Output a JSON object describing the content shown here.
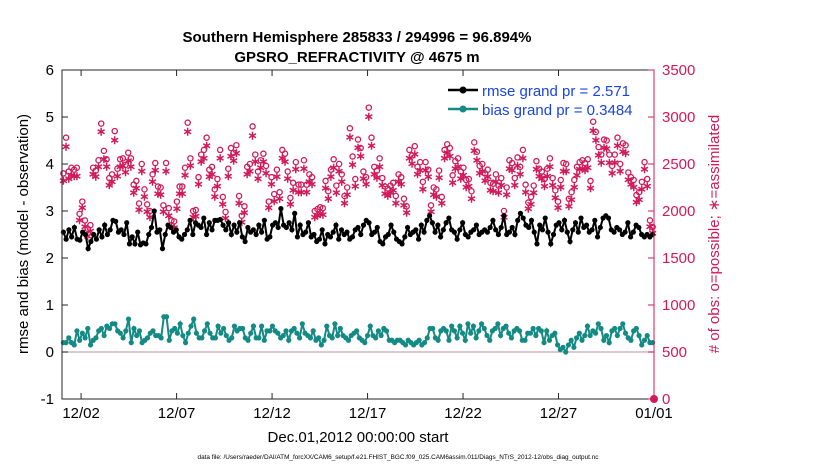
{
  "chart_data": {
    "type": "line",
    "title": "Southern Hemisphere 285833 / 294996 = 96.894%",
    "subtitle": "GPSRO_REFRACTIVITY @ 4675 m",
    "xlabel": "Dec.01,2012 00:00:00 start",
    "ylabel_left": "rmse and bias (model - observation)",
    "ylabel_right": "# of obs: o=possible; ∗=assimilated",
    "footnote": "data file: /Users/raeder/DAI/ATM_forcXX/CAM6_setup/f.e21.FHIST_BGC.f09_025.CAM6assim.011/Diags_NTrS_2012-12/obs_diag_output.nc",
    "xlim": [
      0,
      31
    ],
    "ylim_left": [
      -1,
      6
    ],
    "ylim_right": [
      0,
      3500
    ],
    "x_ticks": [
      1,
      6,
      11,
      16,
      21,
      26,
      31
    ],
    "x_tick_labels": [
      "12/02",
      "12/07",
      "12/12",
      "12/17",
      "12/22",
      "12/27",
      "01/01"
    ],
    "y_left_ticks": [
      -1,
      0,
      1,
      2,
      3,
      4,
      5,
      6
    ],
    "y_right_ticks": [
      0,
      500,
      1000,
      1500,
      2000,
      2500,
      3000,
      3500
    ],
    "grid": false,
    "legend_position": "top-right",
    "zero_line": 0,
    "colors": {
      "rmse": "#000000",
      "bias": "#138a84",
      "obs": "#d11a5a",
      "right_axis": "#d11a5a",
      "zero_line": "#c8a8b8"
    },
    "series": [
      {
        "name": "rmse grand pr = 2.571",
        "key": "rmse",
        "axis": "left",
        "values": [
          2.55,
          2.4,
          2.6,
          2.45,
          2.65,
          2.4,
          2.38,
          2.55,
          2.5,
          2.2,
          2.35,
          2.5,
          2.4,
          2.6,
          2.45,
          2.7,
          2.5,
          2.6,
          2.8,
          2.78,
          2.55,
          2.6,
          2.5,
          2.75,
          2.3,
          2.45,
          2.3,
          2.55,
          2.28,
          2.32,
          2.3,
          2.5,
          2.65,
          3.0,
          2.55,
          2.6,
          2.2,
          2.5,
          2.7,
          2.65,
          2.55,
          2.6,
          2.45,
          2.4,
          2.5,
          2.6,
          2.8,
          2.5,
          2.75,
          2.7,
          2.65,
          2.85,
          2.5,
          2.75,
          2.6,
          2.8,
          2.8,
          2.82,
          2.7,
          2.6,
          2.75,
          2.5,
          2.7,
          2.55,
          2.75,
          2.45,
          2.35,
          2.65,
          2.55,
          2.6,
          2.5,
          2.7,
          2.55,
          2.8,
          2.4,
          2.45,
          2.7,
          2.75,
          2.65,
          3.05,
          2.7,
          2.65,
          2.75,
          2.6,
          2.95,
          2.45,
          2.7,
          2.5,
          2.55,
          2.75,
          2.45,
          2.5,
          2.35,
          2.4,
          2.6,
          2.3,
          2.5,
          2.45,
          2.55,
          2.7,
          2.4,
          2.6,
          2.5,
          2.55,
          2.4,
          2.45,
          2.6,
          2.65,
          2.5,
          2.7,
          2.8,
          2.75,
          2.5,
          2.55,
          2.65,
          2.35,
          2.3,
          2.45,
          2.5,
          2.7,
          2.55,
          2.4,
          2.35,
          2.3,
          2.45,
          2.65,
          2.5,
          2.55,
          2.6,
          2.4,
          2.7,
          2.55,
          2.8,
          2.9,
          2.75,
          2.55,
          2.7,
          2.45,
          2.6,
          2.75,
          2.85,
          2.6,
          2.55,
          2.4,
          2.6,
          2.75,
          2.5,
          2.45,
          2.55,
          2.6,
          2.7,
          2.5,
          2.55,
          2.6,
          2.55,
          2.65,
          2.8,
          2.6,
          2.5,
          2.65,
          2.9,
          2.5,
          2.55,
          2.65,
          2.5,
          2.8,
          2.95,
          2.85,
          2.7,
          2.65,
          2.8,
          2.55,
          2.3,
          2.7,
          2.6,
          2.85,
          2.55,
          2.3,
          2.5,
          2.7,
          2.75,
          2.6,
          2.8,
          2.55,
          2.35,
          2.6,
          2.75,
          2.55,
          2.85,
          2.65,
          2.7,
          2.55,
          2.6,
          2.8,
          2.45,
          2.65,
          2.85,
          2.9,
          2.85,
          2.6,
          2.55,
          2.65,
          2.6,
          2.5,
          2.55,
          2.75,
          2.45,
          2.55,
          2.7,
          2.65,
          2.5,
          2.45,
          2.5,
          2.45,
          2.5
        ]
      },
      {
        "name": "bias grand pr = 0.3484",
        "key": "bias",
        "axis": "left",
        "values": [
          0.2,
          0.2,
          0.3,
          0.2,
          0.15,
          0.45,
          0.25,
          0.4,
          0.3,
          0.5,
          0.15,
          0.25,
          0.3,
          0.45,
          0.5,
          0.35,
          0.55,
          0.5,
          0.6,
          0.6,
          0.45,
          0.4,
          0.3,
          0.45,
          0.7,
          0.2,
          0.5,
          0.35,
          0.45,
          0.2,
          0.25,
          0.3,
          0.4,
          0.45,
          0.35,
          0.35,
          0.3,
          0.75,
          0.75,
          0.25,
          0.45,
          0.5,
          0.4,
          0.6,
          0.35,
          0.2,
          0.4,
          0.55,
          0.7,
          0.4,
          0.3,
          0.3,
          0.45,
          0.6,
          0.4,
          0.3,
          0.3,
          0.55,
          0.4,
          0.5,
          0.35,
          0.25,
          0.3,
          0.55,
          0.45,
          0.5,
          0.5,
          0.3,
          0.25,
          0.4,
          0.55,
          0.3,
          0.3,
          0.55,
          0.25,
          0.45,
          0.45,
          0.55,
          0.45,
          0.4,
          0.3,
          0.35,
          0.45,
          0.25,
          0.45,
          0.5,
          0.4,
          0.3,
          0.6,
          0.4,
          0.35,
          0.3,
          0.45,
          0.25,
          0.3,
          0.15,
          0.25,
          0.55,
          0.35,
          0.3,
          0.6,
          0.35,
          0.5,
          0.35,
          0.3,
          0.25,
          0.35,
          0.4,
          0.45,
          0.3,
          0.25,
          0.2,
          0.35,
          0.55,
          0.35,
          0.3,
          0.45,
          0.35,
          0.5,
          0.45,
          0.25,
          0.25,
          0.2,
          0.25,
          0.25,
          0.2,
          0.15,
          0.25,
          0.2,
          0.15,
          0.2,
          0.25,
          0.15,
          0.2,
          0.3,
          0.5,
          0.5,
          0.3,
          0.25,
          0.45,
          0.5,
          0.45,
          0.25,
          0.55,
          0.45,
          0.3,
          0.55,
          0.4,
          0.25,
          0.6,
          0.4,
          0.55,
          0.3,
          0.45,
          0.6,
          0.5,
          0.35,
          0.25,
          0.45,
          0.5,
          0.6,
          0.35,
          0.5,
          0.55,
          0.4,
          0.3,
          0.45,
          0.5,
          0.45,
          0.25,
          0.25,
          0.4,
          0.4,
          0.5,
          0.35,
          0.5,
          0.45,
          0.2,
          0.45,
          0.25,
          0.35,
          0.4,
          0.15,
          0.05,
          0.1,
          0.0,
          0.15,
          0.25,
          0.1,
          0.3,
          0.4,
          0.25,
          0.35,
          0.55,
          0.35,
          0.45,
          0.4,
          0.6,
          0.5,
          0.25,
          0.35,
          0.2,
          0.45,
          0.5,
          0.35,
          0.5,
          0.6,
          0.4,
          0.3,
          0.25,
          0.45,
          0.5,
          0.35,
          0.15,
          0.25,
          0.35,
          0.2,
          0.2
        ]
      },
      {
        "name": "possible",
        "key": "possible",
        "axis": "right",
        "marker": "o",
        "values": [
          2400,
          2780,
          2420,
          2460,
          2440,
          2460,
          1970,
          2100,
          1900,
          1810,
          1850,
          2460,
          2430,
          2540,
          2930,
          2640,
          2550,
          2350,
          2390,
          2850,
          2450,
          2550,
          2560,
          2490,
          2620,
          2560,
          2280,
          2320,
          2080,
          2500,
          2230,
          2070,
          2000,
          2390,
          2510,
          2260,
          2250,
          2060,
          2510,
          2030,
          1900,
          1890,
          2100,
          2260,
          2260,
          2460,
          2940,
          2560,
          2000,
          2010,
          2360,
          2600,
          2650,
          2780,
          2440,
          2470,
          2230,
          2340,
          2650,
          2150,
          1990,
          2450,
          2670,
          2620,
          2700,
          2160,
          1950,
          2050,
          2470,
          2500,
          2900,
          2600,
          2420,
          2540,
          2610,
          2480,
          2100,
          2360,
          2180,
          2440,
          2200,
          2650,
          2610,
          2420,
          2140,
          2300,
          2520,
          2280,
          2280,
          2540,
          2280,
          2390,
          2360,
          2000,
          2020,
          2040,
          2030,
          2320,
          2210,
          2440,
          2550,
          2270,
          2500,
          2390,
          2160,
          2250,
          2880,
          2580,
          2340,
          2760,
          2670,
          2420,
          2360,
          3100,
          2780,
          2470,
          2430,
          2560,
          2350,
          2260,
          2240,
          2270,
          2300,
          2160,
          2390,
          2360,
          2130,
          2050,
          2650,
          2590,
          2690,
          2470,
          2520,
          2310,
          2520,
          2440,
          2060,
          2250,
          2230,
          2430,
          2150,
          2650,
          2710,
          2670,
          2380,
          2530,
          2560,
          2420,
          2460,
          2330,
          2340,
          2210,
          2730,
          2630,
          2480,
          2500,
          2400,
          2440,
          2300,
          2290,
          2390,
          2270,
          2350,
          2000,
          2250,
          2540,
          2510,
          2350,
          2570,
          2470,
          2650,
          2280,
          2090,
          2150,
          2270,
          2530,
          2450,
          2420,
          2340,
          2450,
          2560,
          2350,
          2220,
          2100,
          2330,
          2510,
          2500,
          2130,
          2200,
          2330,
          2470,
          2520,
          2540,
          2510,
          2550,
          2320,
          2950,
          2840,
          2680,
          2600,
          2760,
          2750,
          2600,
          2480,
          2600,
          2780,
          2500,
          2720,
          2700,
          2410,
          2360,
          2330,
          2170,
          2200,
          2310,
          2520,
          2340,
          1900,
          1830
        ]
      },
      {
        "name": "assimilated",
        "key": "assimilated",
        "axis": "right",
        "marker": "*",
        "values": [
          2330,
          2690,
          2350,
          2390,
          2380,
          2380,
          1910,
          2040,
          1840,
          1740,
          1790,
          2400,
          2370,
          2480,
          2850,
          2560,
          2480,
          2280,
          2320,
          2760,
          2380,
          2480,
          2490,
          2420,
          2540,
          2480,
          2200,
          2250,
          2020,
          2430,
          2160,
          2000,
          1940,
          2320,
          2440,
          2190,
          2180,
          2000,
          2430,
          1960,
          1840,
          1830,
          2030,
          2190,
          2190,
          2390,
          2850,
          2490,
          1940,
          1950,
          2290,
          2530,
          2570,
          2700,
          2370,
          2400,
          2160,
          2270,
          2570,
          2080,
          1930,
          2380,
          2590,
          2540,
          2620,
          2090,
          1890,
          1990,
          2400,
          2430,
          2810,
          2530,
          2350,
          2470,
          2530,
          2410,
          2040,
          2290,
          2110,
          2370,
          2140,
          2570,
          2530,
          2350,
          2080,
          2230,
          2450,
          2210,
          2210,
          2460,
          2210,
          2320,
          2290,
          1940,
          1960,
          1980,
          1970,
          2250,
          2140,
          2370,
          2470,
          2200,
          2430,
          2320,
          2090,
          2180,
          2790,
          2500,
          2270,
          2680,
          2590,
          2350,
          2290,
          3010,
          2700,
          2400,
          2360,
          2480,
          2280,
          2190,
          2170,
          2200,
          2230,
          2090,
          2320,
          2290,
          2070,
          1990,
          2570,
          2510,
          2610,
          2400,
          2440,
          2240,
          2440,
          2370,
          2000,
          2180,
          2160,
          2360,
          2090,
          2570,
          2630,
          2590,
          2310,
          2460,
          2480,
          2350,
          2390,
          2260,
          2270,
          2140,
          2650,
          2550,
          2410,
          2430,
          2330,
          2370,
          2230,
          2220,
          2320,
          2200,
          2280,
          1940,
          2180,
          2460,
          2440,
          2280,
          2490,
          2400,
          2570,
          2210,
          2030,
          2080,
          2200,
          2450,
          2380,
          2350,
          2270,
          2380,
          2480,
          2280,
          2150,
          2040,
          2260,
          2430,
          2430,
          2060,
          2130,
          2260,
          2390,
          2450,
          2460,
          2440,
          2470,
          2250,
          2860,
          2760,
          2600,
          2520,
          2680,
          2670,
          2520,
          2410,
          2520,
          2700,
          2430,
          2640,
          2620,
          2340,
          2290,
          2260,
          2100,
          2130,
          2240,
          2450,
          2270,
          1840,
          1770
        ]
      }
    ],
    "annotations": [
      {
        "x": 31,
        "y_right": 0,
        "series": "possible"
      }
    ]
  }
}
